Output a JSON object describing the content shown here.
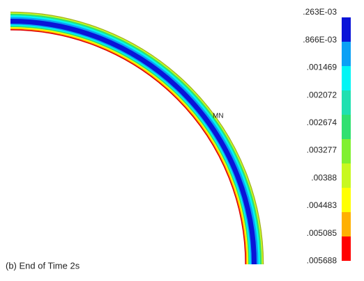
{
  "figure": {
    "caption": "(b) End of Time 2s",
    "min_marker": "MN",
    "legend": {
      "labels": [
        ".263E-03",
        ".866E-03",
        ".001469",
        ".002072",
        ".002674",
        ".003277",
        ".00388",
        ".004483",
        ".005085",
        ".005688"
      ],
      "colors": [
        "#0a14d8",
        "#0aa0f5",
        "#00f5f5",
        "#20e0b0",
        "#30e070",
        "#80f030",
        "#c8f820",
        "#ffff00",
        "#ffb000",
        "#ff0000"
      ]
    }
  }
}
